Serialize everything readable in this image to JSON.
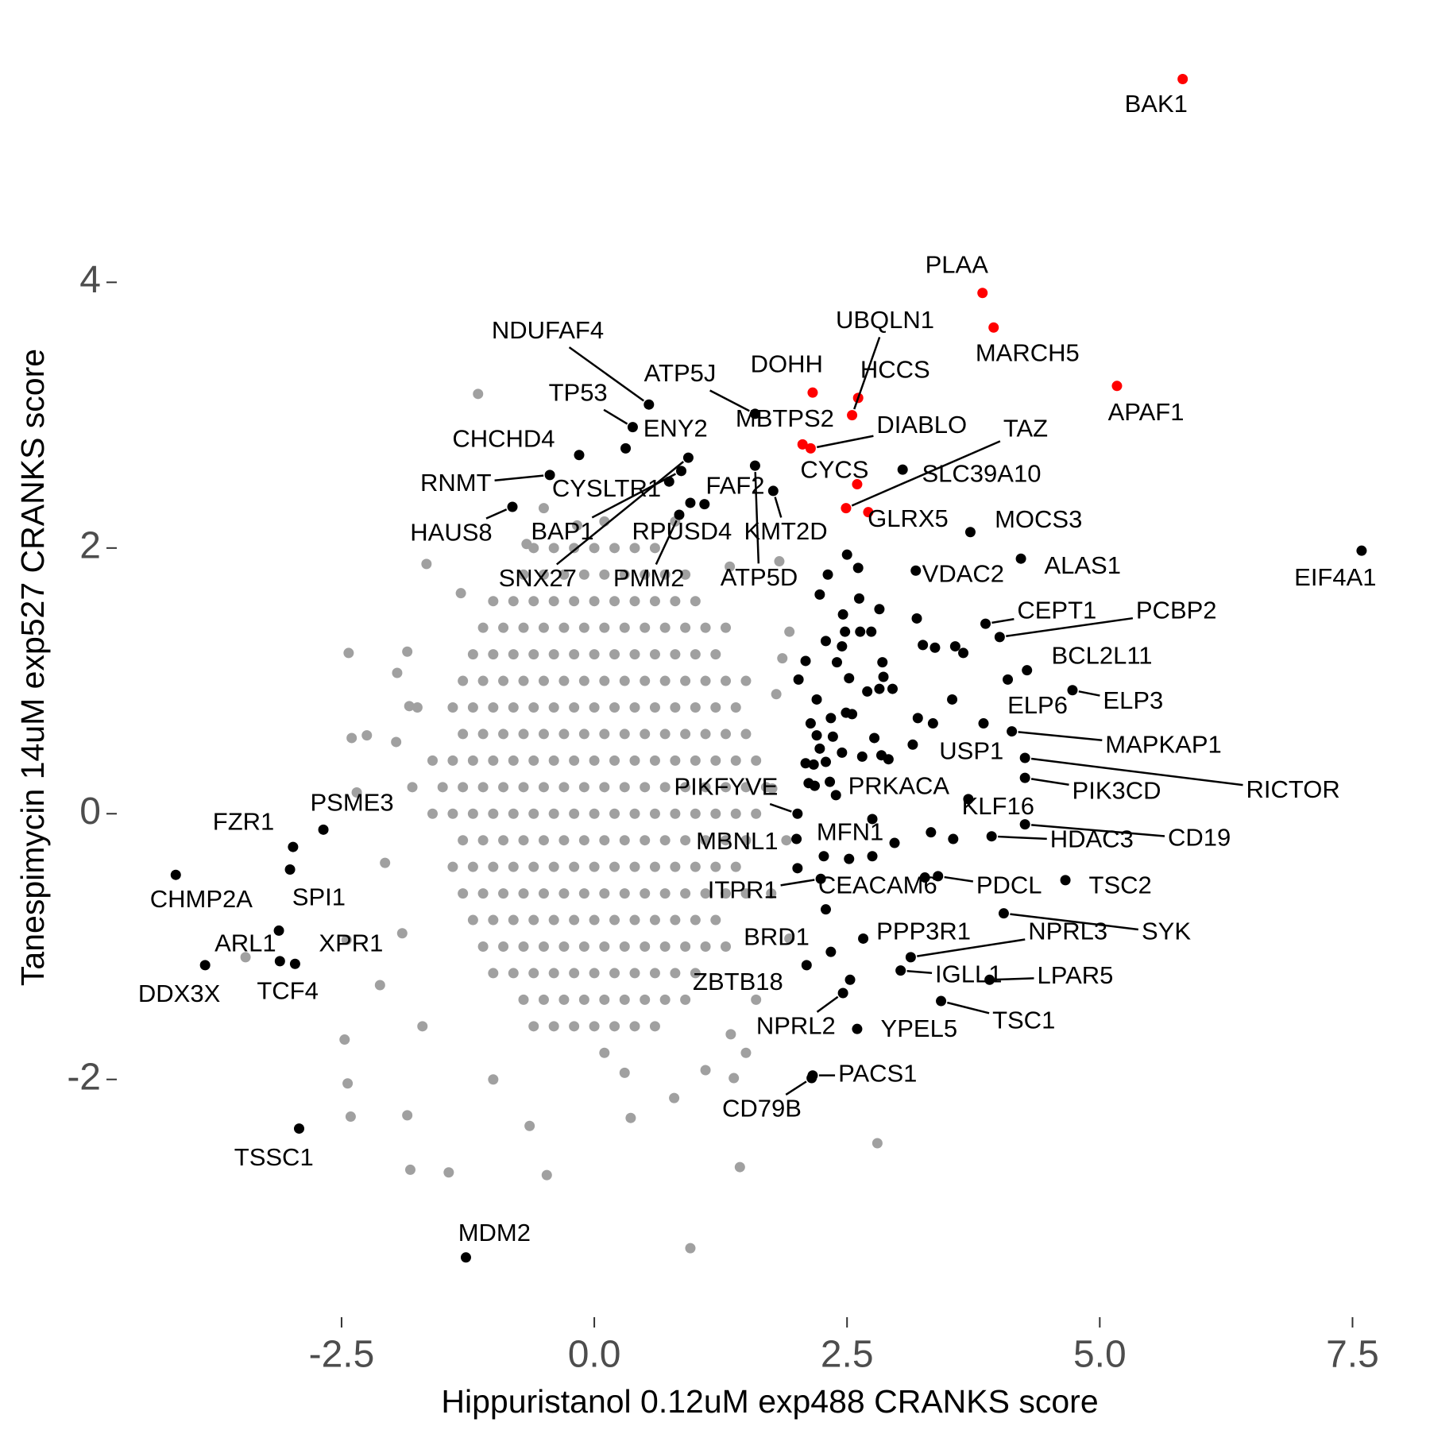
{
  "chart_data": {
    "type": "scatter",
    "xlabel": "Hippuristanol 0.12uM exp488 CRANKS score",
    "ylabel": "Tanespimycin 14uM exp527 CRANKS score",
    "xlim": [
      -4.7,
      7.85
    ],
    "ylim": [
      -3.7,
      5.85
    ],
    "xticks": [
      -2.5,
      {
        "value": 0,
        "label": "0.0"
      },
      2.5,
      {
        "value": 5,
        "label": "5.0"
      },
      7.5
    ],
    "yticks": [
      -2,
      0,
      2,
      4
    ],
    "grid": false,
    "series": [
      {
        "color": "#a0a0a0",
        "x": [
          0.1,
          -0.6,
          -0.4,
          -0.2,
          0,
          0.2,
          0.4,
          0.6,
          -0.7,
          -0.5,
          -0.3,
          -0.1,
          0.1,
          0.3,
          0.5,
          0.7,
          0.9,
          -1.0,
          -0.8,
          -0.6,
          -0.4,
          -0.2,
          0,
          0.2,
          0.4,
          0.6,
          0.8,
          1.0,
          -1.1,
          -0.9,
          -0.7,
          -0.5,
          -0.3,
          -0.1,
          0.1,
          0.3,
          0.5,
          0.7,
          0.9,
          1.1,
          1.3,
          -1.2,
          -1.0,
          -0.8,
          -0.6,
          -0.4,
          -0.2,
          0,
          0.2,
          0.4,
          0.6,
          0.8,
          1.0,
          1.2,
          -1.3,
          -1.1,
          -0.9,
          -0.7,
          -0.5,
          -0.3,
          -0.1,
          0.1,
          0.3,
          0.5,
          0.7,
          0.9,
          1.1,
          1.3,
          1.5,
          -1.4,
          -1.2,
          -1.0,
          -0.8,
          -0.6,
          -0.4,
          -0.2,
          0,
          0.2,
          0.4,
          0.6,
          0.8,
          1.0,
          1.2,
          1.4,
          -1.3,
          -1.1,
          -0.9,
          -0.7,
          -0.5,
          -0.3,
          -0.1,
          0.1,
          0.3,
          0.5,
          0.7,
          0.9,
          1.1,
          1.3,
          1.5,
          -1.6,
          -1.4,
          -1.2,
          -1.0,
          -0.8,
          -0.6,
          -0.4,
          -0.2,
          0,
          0.2,
          0.4,
          0.6,
          0.8,
          1.0,
          1.2,
          1.4,
          1.6,
          -1.5,
          -1.3,
          -1.1,
          -0.9,
          -0.7,
          -0.5,
          -0.3,
          -0.1,
          0.1,
          0.3,
          0.5,
          0.7,
          0.9,
          1.1,
          1.3,
          1.5,
          1.7,
          -1.6,
          -1.4,
          -1.2,
          -1.0,
          -0.8,
          -0.6,
          -0.4,
          -0.2,
          0,
          0.2,
          0.4,
          0.6,
          0.8,
          1.0,
          1.2,
          1.4,
          1.6,
          -1.3,
          -1.1,
          -0.9,
          -0.7,
          -0.5,
          -0.3,
          -0.1,
          0.1,
          0.3,
          0.5,
          0.7,
          0.9,
          1.1,
          1.3,
          1.5,
          -1.4,
          -1.2,
          -1.0,
          -0.8,
          -0.6,
          -0.4,
          -0.2,
          0,
          0.2,
          0.4,
          0.6,
          0.8,
          1.0,
          1.2,
          1.4,
          -1.3,
          -1.1,
          -0.9,
          -0.7,
          -0.5,
          -0.3,
          -0.1,
          0.1,
          0.3,
          0.5,
          0.7,
          0.9,
          1.1,
          1.3,
          1.5,
          -1.2,
          -1.0,
          -0.8,
          -0.6,
          -0.4,
          -0.2,
          0,
          0.2,
          0.4,
          0.6,
          0.8,
          1.0,
          1.2,
          -1.1,
          -0.9,
          -0.7,
          -0.5,
          -0.3,
          -0.1,
          0.1,
          0.3,
          0.5,
          0.7,
          0.9,
          1.1,
          1.3,
          -1.0,
          -0.8,
          -0.6,
          -0.4,
          -0.2,
          0,
          0.2,
          0.4,
          0.6,
          0.8,
          1.0,
          -0.7,
          -0.5,
          -0.3,
          -0.1,
          0.1,
          0.3,
          0.5,
          0.7,
          0.9,
          -0.6,
          -0.4,
          -0.2,
          0,
          0.2,
          0.4,
          0.6,
          0.1
        ],
        "values": [
          2.2,
          2.0,
          2.0,
          2.0,
          2.0,
          2.0,
          2.0,
          2.0,
          1.8,
          1.8,
          1.8,
          1.8,
          1.8,
          1.8,
          1.8,
          1.8,
          1.8,
          1.6,
          1.6,
          1.6,
          1.6,
          1.6,
          1.6,
          1.6,
          1.6,
          1.6,
          1.6,
          1.6,
          1.4,
          1.4,
          1.4,
          1.4,
          1.4,
          1.4,
          1.4,
          1.4,
          1.4,
          1.4,
          1.4,
          1.4,
          1.4,
          1.2,
          1.2,
          1.2,
          1.2,
          1.2,
          1.2,
          1.2,
          1.2,
          1.2,
          1.2,
          1.2,
          1.2,
          1.2,
          1.0,
          1.0,
          1.0,
          1.0,
          1.0,
          1.0,
          1.0,
          1.0,
          1.0,
          1.0,
          1.0,
          1.0,
          1.0,
          1.0,
          1.0,
          0.8,
          0.8,
          0.8,
          0.8,
          0.8,
          0.8,
          0.8,
          0.8,
          0.8,
          0.8,
          0.8,
          0.8,
          0.8,
          0.8,
          0.8,
          0.6,
          0.6,
          0.6,
          0.6,
          0.6,
          0.6,
          0.6,
          0.6,
          0.6,
          0.6,
          0.6,
          0.6,
          0.6,
          0.6,
          0.6,
          0.4,
          0.4,
          0.4,
          0.4,
          0.4,
          0.4,
          0.4,
          0.4,
          0.4,
          0.4,
          0.4,
          0.4,
          0.4,
          0.4,
          0.4,
          0.4,
          0.4,
          0.2,
          0.2,
          0.2,
          0.2,
          0.2,
          0.2,
          0.2,
          0.2,
          0.2,
          0.2,
          0.2,
          0.2,
          0.2,
          0.2,
          0.2,
          0.2,
          0.2,
          0,
          0,
          0,
          0,
          0,
          0,
          0,
          0,
          0,
          0,
          0,
          0,
          0,
          0,
          0,
          0,
          0,
          -0.2,
          -0.2,
          -0.2,
          -0.2,
          -0.2,
          -0.2,
          -0.2,
          -0.2,
          -0.2,
          -0.2,
          -0.2,
          -0.2,
          -0.2,
          -0.2,
          -0.2,
          -0.4,
          -0.4,
          -0.4,
          -0.4,
          -0.4,
          -0.4,
          -0.4,
          -0.4,
          -0.4,
          -0.4,
          -0.4,
          -0.4,
          -0.4,
          -0.4,
          -0.4,
          -0.6,
          -0.6,
          -0.6,
          -0.6,
          -0.6,
          -0.6,
          -0.6,
          -0.6,
          -0.6,
          -0.6,
          -0.6,
          -0.6,
          -0.6,
          -0.6,
          -0.6,
          -0.8,
          -0.8,
          -0.8,
          -0.8,
          -0.8,
          -0.8,
          -0.8,
          -0.8,
          -0.8,
          -0.8,
          -0.8,
          -0.8,
          -0.8,
          -1.0,
          -1.0,
          -1.0,
          -1.0,
          -1.0,
          -1.0,
          -1.0,
          -1.0,
          -1.0,
          -1.0,
          -1.0,
          -1.0,
          -1.0,
          -1.2,
          -1.2,
          -1.2,
          -1.2,
          -1.2,
          -1.2,
          -1.2,
          -1.2,
          -1.2,
          -1.2,
          -1.2,
          -1.4,
          -1.4,
          -1.4,
          -1.4,
          -1.4,
          -1.4,
          -1.4,
          -1.4,
          -1.4,
          -1.6,
          -1.6,
          -1.6,
          -1.6,
          -1.6,
          -1.6,
          -1.6,
          -1.8
        ]
      },
      {
        "color": "#a0a0a0",
        "x": [
          -1.15,
          -2.43,
          -1.66,
          -2.4,
          -2.25,
          -1.96,
          -1.83,
          -2.45,
          -2.12,
          -2.47,
          -2.44,
          -2.41,
          -1.82,
          -1.44,
          -0.47,
          0.95,
          1.44,
          2.8,
          1.1,
          1.35,
          1.38,
          -1.85,
          -0.64,
          0.36,
          0.79,
          1.93,
          1.86,
          1.83,
          1.34,
          -0.67,
          -0.17,
          1.76,
          1.93,
          -1.32,
          -1.85,
          -1.95,
          -2.35,
          -2.07,
          -3.45,
          1.6,
          -1.9,
          -1.8,
          1.9,
          1.8,
          -1.7,
          1.5,
          -1.0,
          0.3,
          -0.5,
          0.8,
          1.75,
          -1.75
        ],
        "values": [
          3.16,
          1.21,
          1.88,
          0.57,
          0.59,
          0.54,
          0.81,
          -0.95,
          -1.29,
          -1.7,
          -2.03,
          -2.28,
          -2.68,
          -2.7,
          -2.72,
          -3.27,
          -2.66,
          -2.48,
          -1.93,
          -1.66,
          -1.99,
          -2.27,
          -2.35,
          -2.29,
          -2.14,
          1.37,
          1.17,
          1.9,
          1.86,
          2.03,
          2.17,
          0.19,
          -0.94,
          1.66,
          1.22,
          1.06,
          0.16,
          -0.37,
          -1.08,
          -1.4,
          -0.9,
          0.2,
          -0.2,
          0.9,
          -1.6,
          -1.8,
          -2.0,
          -1.95,
          2.3,
          2.2,
          -0.6,
          0.8
        ]
      },
      {
        "color": "#000000",
        "x": [
          2.5,
          2.31,
          2.23,
          2.61,
          2.62,
          2.82,
          2.46,
          2.29,
          2.48,
          2.63,
          2.74,
          3.19,
          3.25,
          3.37,
          3.57,
          3.65,
          2.45,
          2.85,
          2.09,
          2.4,
          2.52,
          2.02,
          2.86,
          2.7,
          2.82,
          2.95,
          3.54,
          3.2,
          3.35,
          2.2,
          2.55,
          2.34,
          2.14,
          2.2,
          2.36,
          2.23,
          2.77,
          2.09,
          2.17,
          2.29,
          2.45,
          2.65,
          2.84,
          2.91,
          3.15,
          2.12,
          2.18,
          2.33,
          3.55,
          3.33,
          2.97,
          2.27,
          2.52,
          2.75,
          2.01,
          2.29,
          2.49,
          2.53
        ],
        "values": [
          1.95,
          1.8,
          1.65,
          1.85,
          1.62,
          1.54,
          1.5,
          1.3,
          1.37,
          1.37,
          1.37,
          1.47,
          1.27,
          1.25,
          1.26,
          1.21,
          1.26,
          1.14,
          1.15,
          1.14,
          1.02,
          1.01,
          1.03,
          0.92,
          0.94,
          0.94,
          0.86,
          0.72,
          0.68,
          0.86,
          0.75,
          0.72,
          0.68,
          0.59,
          0.58,
          0.49,
          0.57,
          0.38,
          0.37,
          0.39,
          0.46,
          0.43,
          0.44,
          0.41,
          0.52,
          0.23,
          0.21,
          0.24,
          -0.19,
          -0.14,
          -0.22,
          -0.32,
          -0.34,
          -0.32,
          -0.41,
          -0.72,
          0.76,
          -1.25
        ]
      },
      {
        "color": "#000000",
        "x": [
          0.54,
          0.38,
          1.59,
          0.31,
          -0.15,
          -0.44,
          0.74,
          1.09,
          -0.81,
          0.86,
          0.95,
          1.77,
          0.93,
          0.84,
          1.59,
          3.05,
          3.72,
          4.22,
          3.18,
          7.59,
          3.87,
          4.01,
          4.28,
          4.73,
          4.09,
          4.13,
          3.85,
          4.26,
          4.26,
          2.01,
          2.39,
          3.7,
          2.75,
          2.0,
          3.93,
          4.26,
          3.27,
          3.4,
          4.66,
          2.24,
          4.05,
          3.13,
          2.66,
          2.34,
          3.03,
          3.91,
          2.1,
          2.46,
          2.6,
          3.43,
          2.16,
          2.15,
          -2.68,
          -2.98,
          -4.14,
          -3.01,
          -3.12,
          -2.96,
          -3.85,
          -3.11,
          -2.92,
          -1.27
        ],
        "values": [
          3.08,
          2.91,
          3.01,
          2.75,
          2.7,
          2.55,
          2.5,
          2.33,
          2.31,
          2.58,
          2.34,
          2.43,
          2.68,
          2.25,
          2.62,
          2.59,
          2.12,
          1.92,
          1.83,
          1.98,
          1.43,
          1.33,
          1.08,
          0.93,
          1.01,
          0.62,
          0.68,
          0.42,
          0.27,
          0,
          0.14,
          0.11,
          -0.04,
          -0.19,
          -0.17,
          -0.08,
          -0.48,
          -0.47,
          -0.5,
          -0.49,
          -0.75,
          -1.08,
          -0.94,
          -1.04,
          -1.18,
          -1.25,
          -1.14,
          -1.35,
          -1.62,
          -1.41,
          -1.97,
          -1.99,
          -0.12,
          -0.25,
          -0.46,
          -0.42,
          -0.88,
          -1.13,
          -1.14,
          -1.11,
          -2.37,
          -3.34
        ],
        "labels": [
          "NDUFAF4",
          "TP53",
          "ATP5J",
          "ENY2",
          "CHCHD4",
          "RNMT",
          "CYSLTR1",
          "FAF2",
          "HAUS8",
          "BAP1",
          "RPUSD4",
          "KMT2D",
          "SNX27",
          "PMM2",
          "ATP5D",
          "SLC39A10",
          "MOCS3",
          "ALAS1",
          "VDAC2",
          "EIF4A1",
          "CEPT1",
          "PCBP2",
          "BCL2L11",
          "ELP3",
          "ELP6",
          "MAPKAP1",
          "USP1",
          "RICTOR",
          "PIK3CD",
          "PIKFYVE",
          "PRKACA",
          "KLF16",
          "MFN1",
          "MBNL1",
          "HDAC3",
          "CD19",
          "CEACAM6",
          "PDCL",
          "TSC2",
          "ITPR1",
          "SYK",
          "NPRL3",
          "PPP3R1",
          "BRD1",
          "IGLL1",
          "LPAR5",
          "ZBTB18",
          "NPRL2",
          "YPEL5",
          "TSC1",
          "PACS1",
          "CD79B",
          "PSME3",
          "FZR1",
          "CHMP2A",
          "SPI1",
          "ARL1",
          "XPR1",
          "DDX3X",
          "TCF4",
          "TSSC1",
          "MDM2"
        ]
      },
      {
        "color": "#ff0000",
        "x": [
          5.82,
          3.84,
          3.95,
          5.17,
          2.16,
          2.61,
          2.55,
          2.06,
          2.14,
          2.6,
          2.71,
          2.49
        ],
        "values": [
          5.53,
          3.92,
          3.66,
          3.22,
          3.17,
          3.13,
          3.0,
          2.78,
          2.75,
          2.48,
          2.27,
          2.3
        ],
        "labels": [
          "BAK1",
          "PLAA",
          "MARCH5",
          "APAF1",
          "DOHH",
          "HCCS",
          "UBQLN1",
          "MBTPS2",
          "DIABLO",
          "CYCS",
          "GLRX5",
          "TAZ"
        ]
      }
    ]
  }
}
